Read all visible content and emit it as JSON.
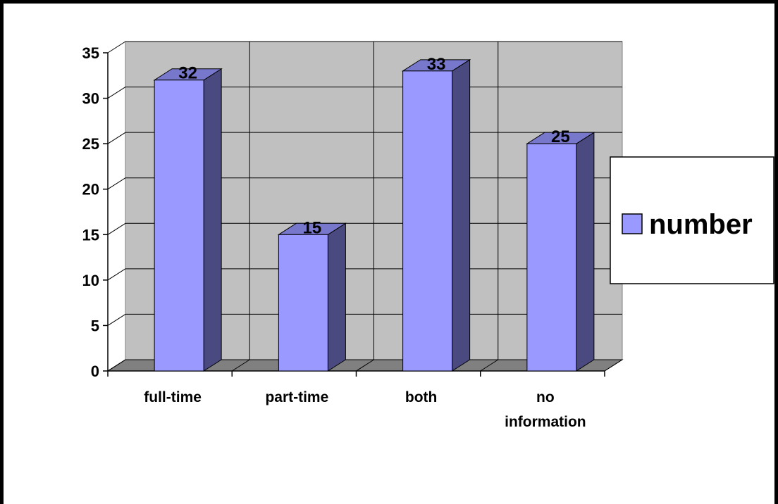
{
  "chart_data": {
    "type": "bar",
    "categories": [
      "full-time",
      "part-time",
      "both",
      "no information"
    ],
    "series": [
      {
        "name": "number",
        "values": [
          32,
          15,
          33,
          25
        ]
      }
    ],
    "ylim": [
      0,
      35
    ],
    "yticks": [
      "0",
      "5",
      "10",
      "15",
      "20",
      "25",
      "30",
      "35"
    ],
    "data_labels": [
      "32",
      "15",
      "33",
      "25"
    ],
    "grid": true,
    "legend_position": "right",
    "colors": {
      "bar_front": "#9999FF",
      "bar_side": "#4B4A80",
      "bar_top": "#7777CC",
      "wall": "#C0C0C0",
      "floor": "#808080",
      "gridline": "#000000"
    }
  }
}
